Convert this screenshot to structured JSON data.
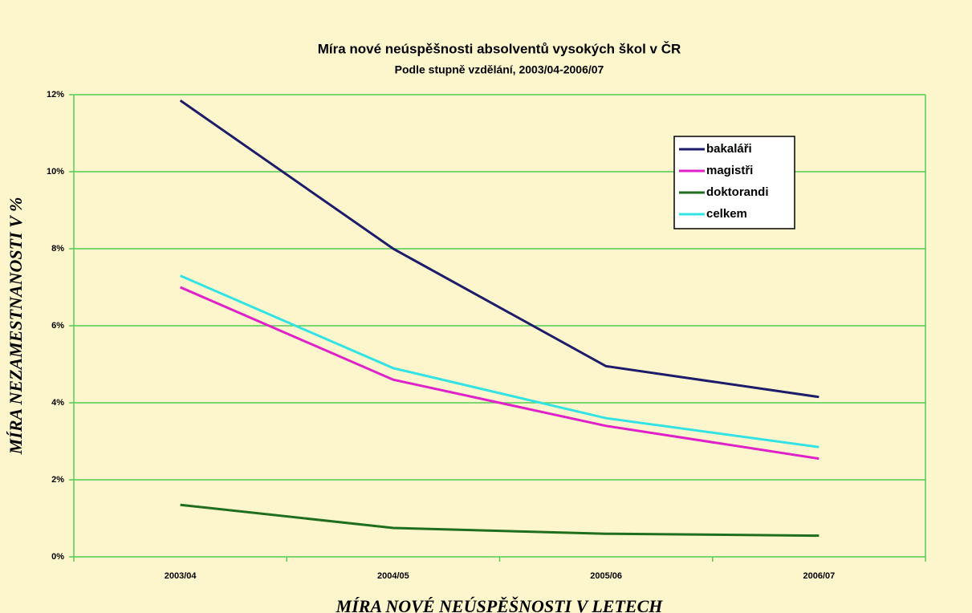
{
  "chart_data": {
    "type": "line",
    "title": "Míra nové neúspěšnosti absolventů vysokých škol v ČR",
    "subtitle": "Podle stupně vzdělání, 2003/04-2006/07",
    "x_label": "MÍRA NOVÉ NEÚSPĚŠNOSTI V LETECH",
    "y_label": "MÍRA NEZAMESTNANOSTI V %",
    "categories": [
      "2003/04",
      "2004/05",
      "2005/06",
      "2006/07"
    ],
    "series": [
      {
        "name": "bakaláři",
        "color": "#1c1c6a",
        "values": [
          11.85,
          8.0,
          4.95,
          4.15
        ]
      },
      {
        "name": "magistři",
        "color": "#e020c8",
        "values": [
          7.0,
          4.6,
          3.4,
          2.55
        ]
      },
      {
        "name": "doktorandi",
        "color": "#1f6e1f",
        "values": [
          1.35,
          0.75,
          0.6,
          0.55
        ]
      },
      {
        "name": "celkem",
        "color": "#33e3e3",
        "values": [
          7.3,
          4.9,
          3.6,
          2.85
        ]
      }
    ],
    "ylim": [
      0,
      12
    ],
    "yticks": [
      {
        "value": 0,
        "label": "0%"
      },
      {
        "value": 2,
        "label": "2%"
      },
      {
        "value": 4,
        "label": "4%"
      },
      {
        "value": 6,
        "label": "6%"
      },
      {
        "value": 8,
        "label": "8%"
      },
      {
        "value": 10,
        "label": "10%"
      },
      {
        "value": 12,
        "label": "12%"
      }
    ],
    "grid": true
  }
}
